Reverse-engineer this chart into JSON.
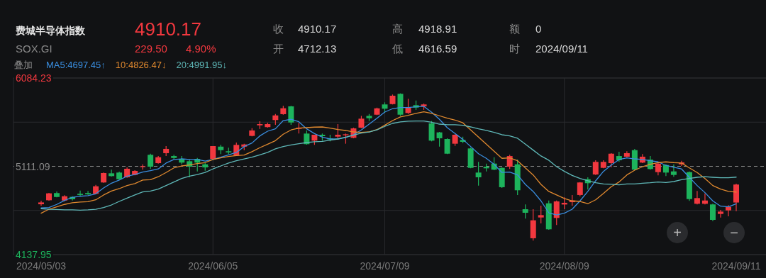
{
  "chart_data": {
    "type": "candlestick",
    "title": "费城半导体指数",
    "subtitle": "SOX.GI",
    "annotations": [
      "4910.17",
      "229.50",
      "4.90%",
      "收",
      "4910.17",
      "开",
      "4712.13",
      "高",
      "4918.91",
      "低",
      "4616.59",
      "额",
      "0",
      "时",
      "2024/09/11",
      "叠加",
      "+",
      "−"
    ],
    "categories": [
      "2024/05/03",
      null,
      null,
      null,
      null,
      null,
      null,
      null,
      null,
      null,
      null,
      null,
      null,
      null,
      null,
      null,
      null,
      null,
      null,
      null,
      null,
      null,
      "2024/06/05",
      null,
      null,
      null,
      null,
      null,
      null,
      null,
      null,
      null,
      null,
      null,
      null,
      null,
      null,
      null,
      null,
      null,
      null,
      null,
      null,
      null,
      "2024/07/09",
      null,
      null,
      null,
      null,
      null,
      null,
      null,
      null,
      null,
      null,
      null,
      null,
      null,
      null,
      null,
      null,
      null,
      null,
      null,
      null,
      null,
      null,
      "2024/08/09",
      null,
      null,
      null,
      null,
      null,
      null,
      null,
      null,
      null,
      null,
      null,
      null,
      null,
      null,
      null,
      null,
      null,
      null,
      null,
      null,
      null,
      "2024/09/11"
    ],
    "ohlc": [
      [
        4693,
        4732,
        4677,
        4713
      ],
      [
        4737,
        4818,
        4732,
        4813
      ],
      [
        4816,
        4834,
        4769,
        4773
      ],
      [
        4734,
        4792,
        4724,
        4781
      ],
      [
        4774,
        4781,
        4734,
        4748
      ],
      [
        4808,
        4844,
        4787,
        4795
      ],
      [
        4816,
        4839,
        4797,
        4802
      ],
      [
        4808,
        4906,
        4802,
        4891
      ],
      [
        4933,
        5042,
        4930,
        5037
      ],
      [
        5034,
        5074,
        4998,
        5003
      ],
      [
        5042,
        5052,
        4964,
        4969
      ],
      [
        4990,
        5099,
        4984,
        5084
      ],
      [
        5016,
        5068,
        5011,
        5060
      ],
      [
        5105,
        5133,
        5074,
        5112
      ],
      [
        5238,
        5250,
        5081,
        5107
      ],
      [
        5146,
        5224,
        5141,
        5211
      ],
      [
        5256,
        5334,
        5224,
        5303
      ],
      [
        5224,
        5238,
        5193,
        5203
      ],
      [
        5193,
        5224,
        5133,
        5152
      ],
      [
        5167,
        5185,
        4990,
        5107
      ],
      [
        5193,
        5203,
        5055,
        5152
      ],
      [
        5133,
        5146,
        5063,
        5099
      ],
      [
        5193,
        5334,
        5185,
        5334
      ],
      [
        5328,
        5347,
        5246,
        5289
      ],
      [
        5277,
        5316,
        5246,
        5264
      ],
      [
        5230,
        5373,
        5224,
        5347
      ],
      [
        5328,
        5360,
        5289,
        5352
      ],
      [
        5446,
        5532,
        5441,
        5506
      ],
      [
        5563,
        5607,
        5524,
        5576
      ],
      [
        5543,
        5592,
        5537,
        5576
      ],
      [
        5621,
        5688,
        5568,
        5672
      ],
      [
        5686,
        5777,
        5680,
        5751
      ],
      [
        5772,
        5777,
        5568,
        5594
      ],
      [
        5524,
        5589,
        5472,
        5537
      ],
      [
        5472,
        5506,
        5349,
        5355
      ],
      [
        5394,
        5459,
        5347,
        5459
      ],
      [
        5459,
        5472,
        5394,
        5443
      ],
      [
        5420,
        5459,
        5386,
        5407
      ],
      [
        5438,
        5576,
        5420,
        5459
      ],
      [
        5453,
        5472,
        5360,
        5464
      ],
      [
        5425,
        5537,
        5420,
        5529
      ],
      [
        5537,
        5667,
        5532,
        5636
      ],
      [
        5667,
        5688,
        5610,
        5641
      ],
      [
        5680,
        5758,
        5675,
        5750
      ],
      [
        5793,
        5816,
        5701,
        5746
      ],
      [
        5797,
        5902,
        5793,
        5889
      ],
      [
        5910,
        5915,
        5667,
        5680
      ],
      [
        5699,
        5855,
        5688,
        5758
      ],
      [
        5785,
        5836,
        5733,
        5758
      ],
      [
        5772,
        5803,
        5733,
        5793
      ],
      [
        5584,
        5610,
        5386,
        5394
      ],
      [
        5485,
        5490,
        5328,
        5420
      ],
      [
        5412,
        5420,
        5246,
        5250
      ],
      [
        5360,
        5464,
        5336,
        5459
      ],
      [
        5402,
        5438,
        5368,
        5381
      ],
      [
        5308,
        5316,
        5089,
        5094
      ],
      [
        5042,
        5160,
        4898,
        4990
      ],
      [
        5107,
        5141,
        5055,
        5089
      ],
      [
        5141,
        5211,
        5068,
        5074
      ],
      [
        5094,
        5099,
        4873,
        4881
      ],
      [
        5107,
        5238,
        5081,
        5224
      ],
      [
        5133,
        5185,
        4795,
        4847
      ],
      [
        4638,
        4691,
        4534,
        4599
      ],
      [
        4318,
        4638,
        4292,
        4516
      ],
      [
        4547,
        4677,
        4482,
        4573
      ],
      [
        4703,
        4734,
        4412,
        4417
      ],
      [
        4542,
        4734,
        4464,
        4724
      ],
      [
        4690,
        4769,
        4638,
        4709
      ],
      [
        4716,
        4795,
        4677,
        4734
      ],
      [
        4795,
        4938,
        4781,
        4933
      ],
      [
        4969,
        4990,
        4855,
        4925
      ],
      [
        5021,
        5178,
        5016,
        5160
      ],
      [
        5094,
        5178,
        5089,
        5160
      ],
      [
        5146,
        5256,
        5099,
        5250
      ],
      [
        5224,
        5271,
        5160,
        5178
      ],
      [
        5217,
        5277,
        5211,
        5256
      ],
      [
        5289,
        5303,
        5068,
        5074
      ],
      [
        5152,
        5246,
        5146,
        5217
      ],
      [
        5185,
        5224,
        5074,
        5081
      ],
      [
        5047,
        5160,
        5011,
        5141
      ],
      [
        5125,
        5133,
        5003,
        5042
      ],
      [
        5055,
        5133,
        4995,
        5016
      ],
      [
        5133,
        5172,
        5115,
        5154
      ],
      [
        5047,
        5055,
        4730,
        4750
      ],
      [
        4698,
        4839,
        4691,
        4761
      ],
      [
        4698,
        4813,
        4691,
        4734
      ],
      [
        4691,
        4698,
        4508,
        4521
      ],
      [
        4586,
        4630,
        4547,
        4612
      ],
      [
        4625,
        4683,
        4560,
        4664
      ],
      [
        4712.13,
        4918.91,
        4616.59,
        4910.17
      ]
    ],
    "colors": [
      "#f2383f",
      "#f2383f",
      "#1db35c",
      "#f2383f",
      "#1db35c",
      "#1db35c",
      "#1db35c",
      "#f2383f",
      "#f2383f",
      "#1db35c",
      "#1db35c",
      "#f2383f",
      "#f2383f",
      "#f2383f",
      "#1db35c",
      "#f2383f",
      "#f2383f",
      "#1db35c",
      "#1db35c",
      "#1db35c",
      "#1db35c",
      "#1db35c",
      "#f2383f",
      "#1db35c",
      "#1db35c",
      "#f2383f",
      "#f2383f",
      "#f2383f",
      "#f2383f",
      "#f2383f",
      "#f2383f",
      "#f2383f",
      "#1db35c",
      "#f2383f",
      "#1db35c",
      "#f2383f",
      "#1db35c",
      "#1db35c",
      "#f2383f",
      "#f2383f",
      "#f2383f",
      "#f2383f",
      "#1db35c",
      "#f2383f",
      "#1db35c",
      "#f2383f",
      "#1db35c",
      "#f2383f",
      "#1db35c",
      "#f2383f",
      "#1db35c",
      "#1db35c",
      "#1db35c",
      "#f2383f",
      "#1db35c",
      "#1db35c",
      "#1db35c",
      "#1db35c",
      "#1db35c",
      "#1db35c",
      "#f2383f",
      "#1db35c",
      "#1db35c",
      "#f2383f",
      "#f2383f",
      "#1db35c",
      "#f2383f",
      "#f2383f",
      "#f2383f",
      "#f2383f",
      "#1db35c",
      "#f2383f",
      "#f2383f",
      "#f2383f",
      "#1db35c",
      "#f2383f",
      "#1db35c",
      "#f2383f",
      "#1db35c",
      "#f2383f",
      "#1db35c",
      "#1db35c",
      "#f2383f",
      "#1db35c",
      "#f2383f",
      "#f2383f",
      "#1db35c",
      "#f2383f",
      "#f2383f",
      "#f2383f"
    ],
    "series": [
      {
        "name": "MA5:4697.45↑",
        "type": "line",
        "color": "#3a8ee0",
        "values": [
          4652,
          4656,
          4691,
          4735,
          4769,
          4781,
          4787,
          4808,
          4873,
          4925,
          4959,
          5003,
          5021,
          5047,
          5063,
          5082,
          5147,
          5186,
          5193,
          5186,
          5186,
          5168,
          5186,
          5211,
          5238,
          5264,
          5329,
          5368,
          5446,
          5498,
          5524,
          5615,
          5629,
          5602,
          5524,
          5472,
          5433,
          5412,
          5412,
          5428,
          5459,
          5512,
          5576,
          5641,
          5709,
          5746,
          5759,
          5759,
          5766,
          5772,
          5707,
          5629,
          5537,
          5472,
          5407,
          5329,
          5250,
          5199,
          5133,
          5043,
          5047,
          5016,
          4912,
          4834,
          4730,
          4599,
          4574,
          4594,
          4638,
          4730,
          4834,
          4951,
          5055,
          5125,
          5186,
          5204,
          5193,
          5186,
          5172,
          5160,
          5121,
          5100,
          5082,
          4990,
          4899,
          4821,
          4730,
          4672,
          4664,
          4697
        ]
      },
      {
        "name": "10:4826.47↓",
        "type": "line",
        "color": "#e0892f",
        "values": [
          4594,
          4638,
          4664,
          4691,
          4709,
          4717,
          4722,
          4742,
          4795,
          4839,
          4865,
          4899,
          4920,
          4959,
          4964,
          4996,
          5043,
          5094,
          5115,
          5125,
          5141,
          5152,
          5186,
          5204,
          5219,
          5230,
          5235,
          5272,
          5316,
          5355,
          5394,
          5465,
          5512,
          5532,
          5537,
          5543,
          5545,
          5532,
          5516,
          5506,
          5490,
          5485,
          5490,
          5516,
          5563,
          5615,
          5655,
          5673,
          5694,
          5712,
          5694,
          5668,
          5641,
          5621,
          5590,
          5512,
          5433,
          5355,
          5277,
          5199,
          5204,
          5172,
          5094,
          5016,
          4912,
          4834,
          4795,
          4756,
          4730,
          4724,
          4699,
          4742,
          4813,
          4886,
          4938,
          5016,
          5068,
          5107,
          5133,
          5152,
          5160,
          5152,
          5147,
          5094,
          5043,
          4977,
          4899,
          4860,
          4834,
          4826
        ]
      },
      {
        "name": "20:4991.95↓",
        "type": "line",
        "color": "#5fb8b8",
        "values": [
          4644,
          4638,
          4636,
          4631,
          4631,
          4628,
          4631,
          4638,
          4656,
          4685,
          4724,
          4761,
          4795,
          4828,
          4839,
          4860,
          4899,
          4938,
          4977,
          5003,
          5021,
          5043,
          5082,
          5115,
          5147,
          5172,
          5193,
          5211,
          5238,
          5264,
          5303,
          5329,
          5347,
          5360,
          5373,
          5381,
          5386,
          5399,
          5412,
          5433,
          5454,
          5477,
          5490,
          5512,
          5551,
          5584,
          5600,
          5608,
          5610,
          5610,
          5597,
          5576,
          5569,
          5569,
          5563,
          5545,
          5524,
          5506,
          5485,
          5459,
          5446,
          5420,
          5355,
          5290,
          5225,
          5178,
          5107,
          5055,
          5011,
          4977,
          4951,
          4930,
          4917,
          4912,
          4907,
          4917,
          4917,
          4925,
          4930,
          4938,
          4933,
          4943,
          4964,
          4977,
          4990,
          4996,
          4990,
          4985,
          4985,
          4992
        ]
      }
    ],
    "ylim": [
      4137.95,
      6084.23
    ],
    "yticks": [
      4137.95,
      {
        "value": 4624.52,
        "label": null
      },
      5111.09,
      {
        "value": 5597.66,
        "label": null
      },
      6084.23
    ],
    "ref_lines": [
      {
        "axis": "y",
        "value": 5111.09,
        "color": "#8a8a8a",
        "line_style": "dashed"
      }
    ],
    "grid": true,
    "legend": "top left"
  }
}
